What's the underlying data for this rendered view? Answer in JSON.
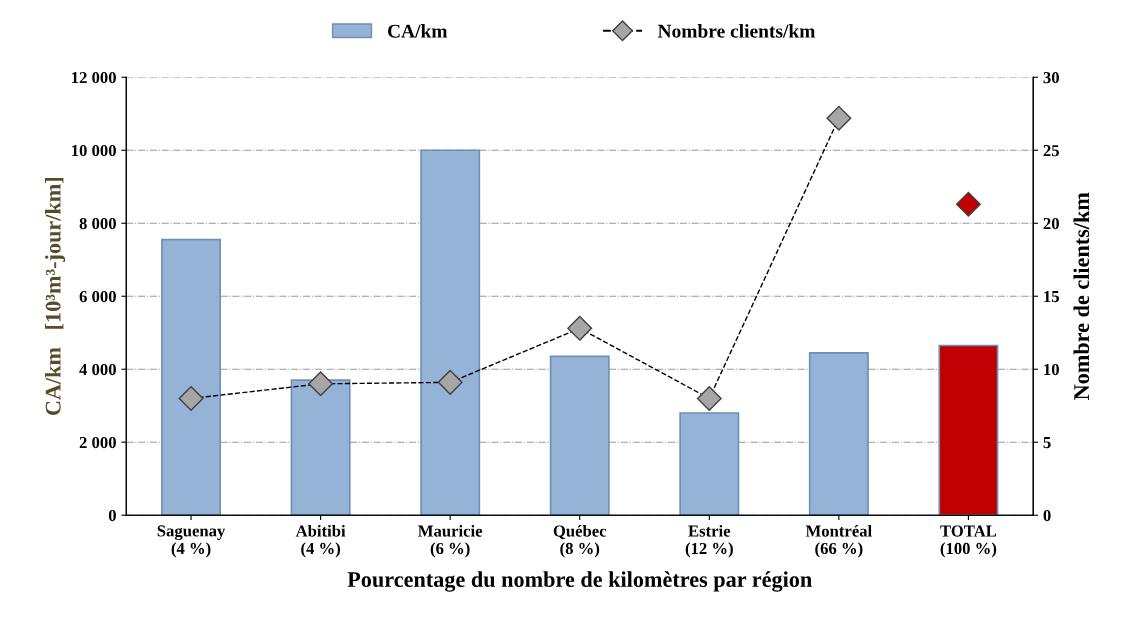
{
  "chart_data": {
    "type": "bar",
    "categories": [
      "Saguenay\n(4 %)",
      "Abitibi\n(4 %)",
      "Mauricie\n(6 %)",
      "Québec\n(8 %)",
      "Estrie\n(12 %)",
      "Montréal\n(66 %)",
      "TOTAL\n(100 %)"
    ],
    "xlabel": "Pourcentage du nombre de kilomètres par région",
    "ylabel": "CA/km   [10³m³-jour/km]",
    "y2label": "Nombre de clients/km",
    "series": [
      {
        "name": "CA/km",
        "colors": [
          "#95b3d7",
          "#95b3d7",
          "#95b3d7",
          "#95b3d7",
          "#95b3d7",
          "#95b3d7",
          "#c00000"
        ],
        "values": [
          7550,
          3700,
          10000,
          4350,
          2800,
          4450,
          4650
        ]
      },
      {
        "name": "Nombre clients/km",
        "type": "line",
        "axis": "y2",
        "color": "#a6a6a6",
        "marker": "diamond",
        "line_style": "dashed",
        "values": [
          8,
          9,
          9.1,
          12.8,
          8,
          27.2,
          null
        ]
      },
      {
        "type": "scatter",
        "axis": "y2",
        "color": "#c00000",
        "marker": "diamond",
        "values": [
          null,
          null,
          null,
          null,
          null,
          null,
          21.3
        ]
      }
    ],
    "ylim": [
      0,
      12000
    ],
    "yticks": [
      {
        "value": 0,
        "label": "0"
      },
      {
        "value": 2000,
        "label": "2 000"
      },
      {
        "value": 4000,
        "label": "4 000"
      },
      {
        "value": 6000,
        "label": "6 000"
      },
      {
        "value": 8000,
        "label": "8 000"
      },
      {
        "value": 10000,
        "label": "10 000"
      },
      {
        "value": 12000,
        "label": "12 000"
      }
    ],
    "y2lim": [
      0,
      30
    ],
    "y2ticks": [
      0,
      5,
      10,
      15,
      20,
      25,
      30
    ],
    "grid": "y",
    "legend": "top"
  }
}
